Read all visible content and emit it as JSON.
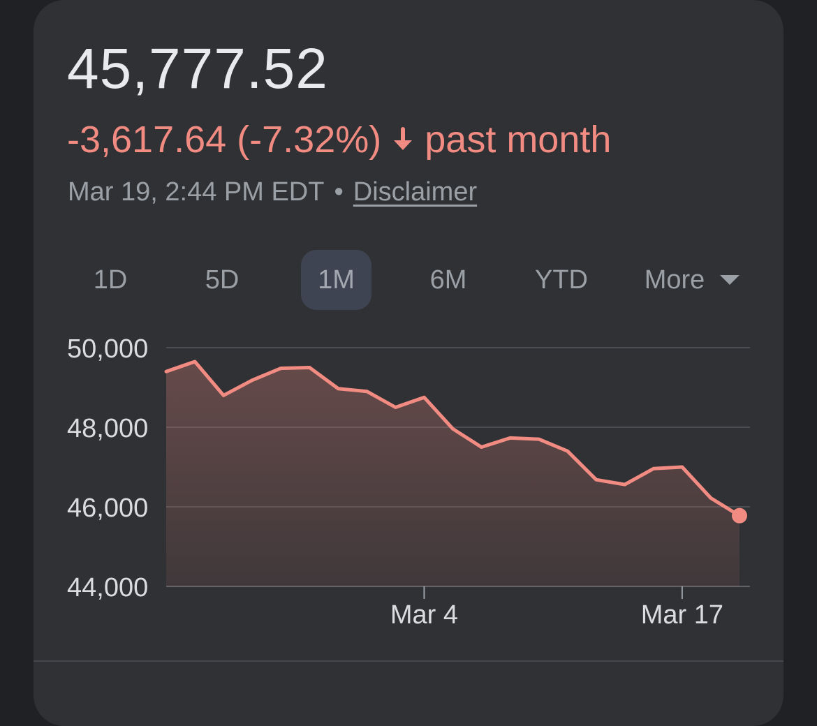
{
  "quote": {
    "price": "45,777.52",
    "change": "-3,617.64 (-7.32%)",
    "period_label": "past month",
    "timestamp": "Mar 19, 2:44 PM EDT",
    "separator": "•",
    "disclaimer": "Disclaimer"
  },
  "range_tabs": [
    {
      "label": "1D"
    },
    {
      "label": "5D"
    },
    {
      "label": "1M",
      "selected": true
    },
    {
      "label": "6M"
    },
    {
      "label": "YTD"
    },
    {
      "label": "More"
    }
  ],
  "colors": {
    "negative": "#f28b82",
    "text_primary": "#e8eaed",
    "text_secondary": "#9aa0a6",
    "card_background": "#303134",
    "page_background": "#202124",
    "gridline": "#4a4d51",
    "selected_tab": "#3f4452"
  },
  "icons": {
    "change_direction": "arrow-down-icon",
    "more_menu": "dropdown-triangle-icon"
  },
  "chart_data": {
    "type": "area",
    "title": "",
    "xlabel": "",
    "ylabel": "",
    "y_ticks": [
      50000,
      48000,
      46000,
      44000
    ],
    "y_tick_labels": [
      "50,000",
      "48,000",
      "46,000",
      "44,000"
    ],
    "ylim": [
      44000,
      50000
    ],
    "x_tick_labels": [
      "Mar 4",
      "Mar 17"
    ],
    "x_tick_positions": [
      9,
      18
    ],
    "grid": true,
    "series": [
      {
        "values": [
          49400,
          49650,
          48800,
          49180,
          49480,
          49500,
          48970,
          48900,
          48500,
          48750,
          47960,
          47500,
          47730,
          47700,
          47400,
          46680,
          46560,
          46960,
          47000,
          46220,
          45777.52
        ]
      }
    ]
  }
}
